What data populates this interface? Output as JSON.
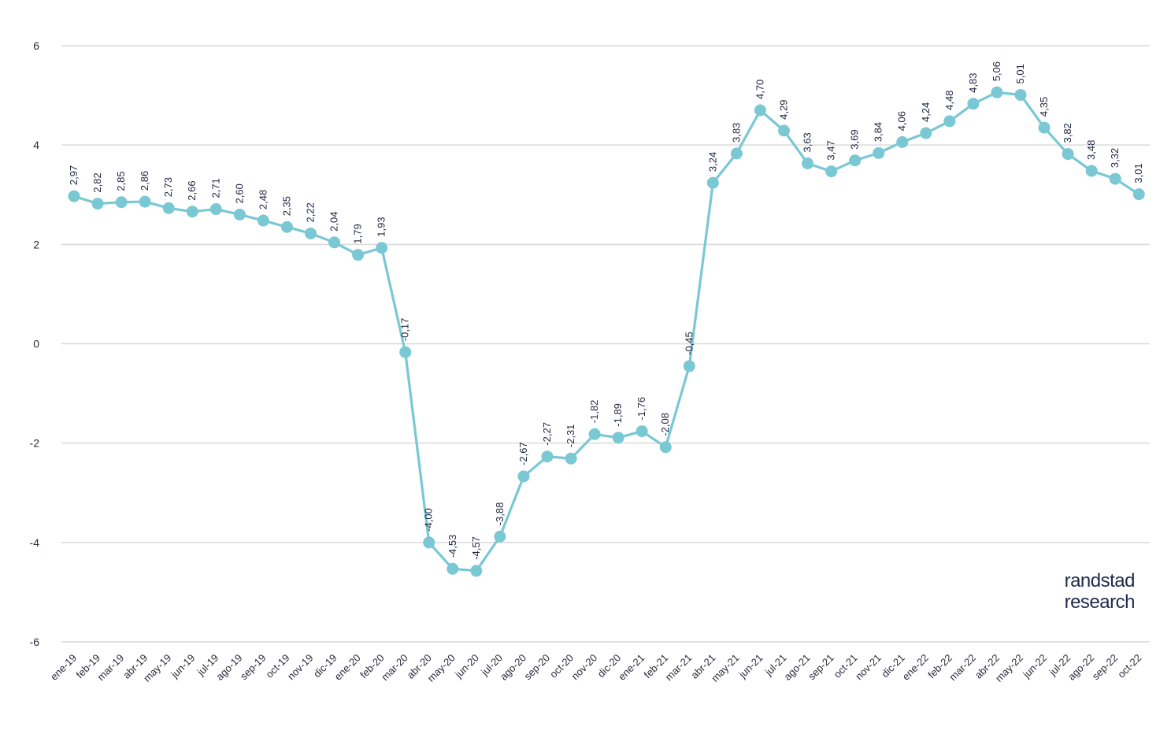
{
  "chart_data": {
    "type": "line",
    "categories": [
      "ene-19",
      "feb-19",
      "mar-19",
      "abr-19",
      "may-19",
      "jun-19",
      "jul-19",
      "ago-19",
      "sep-19",
      "oct-19",
      "nov-19",
      "dic-19",
      "ene-20",
      "feb-20",
      "mar-20",
      "abr-20",
      "may-20",
      "jun-20",
      "jul-20",
      "ago-20",
      "sep-20",
      "oct-20",
      "nov-20",
      "dic-20",
      "ene-21",
      "feb-21",
      "mar-21",
      "abr-21",
      "may-21",
      "jun-21",
      "jul-21",
      "ago-21",
      "sep-21",
      "oct-21",
      "nov-21",
      "dic-21",
      "ene-22",
      "feb-22",
      "mar-22",
      "abr-22",
      "may-22",
      "jun-22",
      "jul-22",
      "ago-22",
      "sep-22",
      "oct-22"
    ],
    "series": [
      {
        "values": [
          2.97,
          2.82,
          2.85,
          2.86,
          2.73,
          2.66,
          2.71,
          2.6,
          2.48,
          2.35,
          2.22,
          2.04,
          1.79,
          1.93,
          -0.17,
          -4.0,
          -4.53,
          -4.57,
          -3.88,
          -2.67,
          -2.27,
          -2.31,
          -1.82,
          -1.89,
          -1.76,
          -2.08,
          -0.45,
          3.24,
          3.83,
          4.7,
          4.29,
          3.63,
          3.47,
          3.69,
          3.84,
          4.06,
          4.24,
          4.48,
          4.83,
          5.06,
          5.01,
          4.35,
          3.82,
          3.48,
          3.32,
          3.01
        ],
        "labels": [
          "2,97",
          "2,82",
          "2,85",
          "2,86",
          "2,73",
          "2,66",
          "2,71",
          "2,60",
          "2,48",
          "2,35",
          "2,22",
          "2,04",
          "1,79",
          "1,93",
          "-0,17",
          "-4,00",
          "-4,53",
          "-4,57",
          "-3,88",
          "-2,67",
          "-2,27",
          "-2,31",
          "-1,82",
          "-1,89",
          "-1,76",
          "-2,08",
          "-0,45",
          "3,24",
          "3,83",
          "4,70",
          "4,29",
          "3,63",
          "3,47",
          "3,69",
          "3,84",
          "4,06",
          "4,24",
          "4,48",
          "4,83",
          "5,06",
          "5,01",
          "4,35",
          "3,82",
          "3,48",
          "3,32",
          "3,01"
        ]
      }
    ],
    "yticks": [
      "6",
      "4",
      "2",
      "0",
      "-2",
      "-4",
      "-6"
    ],
    "ylim": [
      -6,
      6
    ],
    "grid": true,
    "line_color": "#79c8d4",
    "grid_color": "#d9d9d9"
  },
  "brand": {
    "line1": "randstad",
    "line2": "research"
  }
}
